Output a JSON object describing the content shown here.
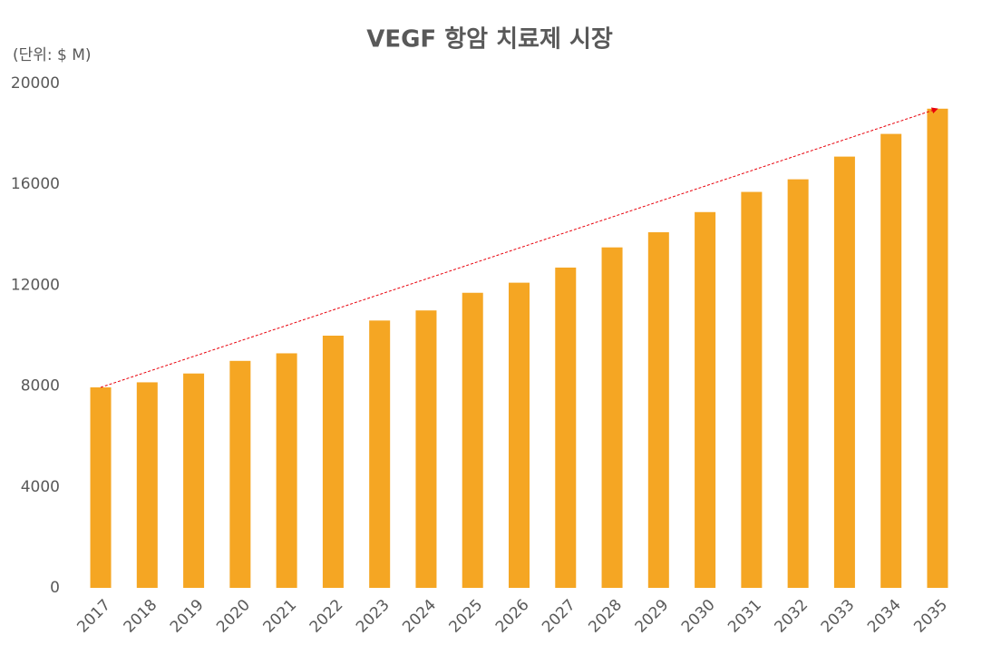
{
  "chart_data": {
    "type": "bar",
    "title": "VEGF 항암 치료제 시장",
    "unit_label": "(단위: $ M)",
    "categories": [
      "2017",
      "2018",
      "2019",
      "2020",
      "2021",
      "2022",
      "2023",
      "2024",
      "2025",
      "2026",
      "2027",
      "2028",
      "2029",
      "2030",
      "2031",
      "2032",
      "2033",
      "2034",
      "2035"
    ],
    "values": [
      7950,
      8150,
      8500,
      9000,
      9300,
      10000,
      10600,
      11000,
      11700,
      12100,
      12700,
      13500,
      14100,
      14900,
      15700,
      16200,
      17100,
      18000,
      19000
    ],
    "color": "#f5a623",
    "trend_color": "#e8000b",
    "ylim": [
      0,
      20000
    ],
    "yticks": [
      0,
      4000,
      8000,
      12000,
      16000,
      20000
    ],
    "grid": false
  }
}
